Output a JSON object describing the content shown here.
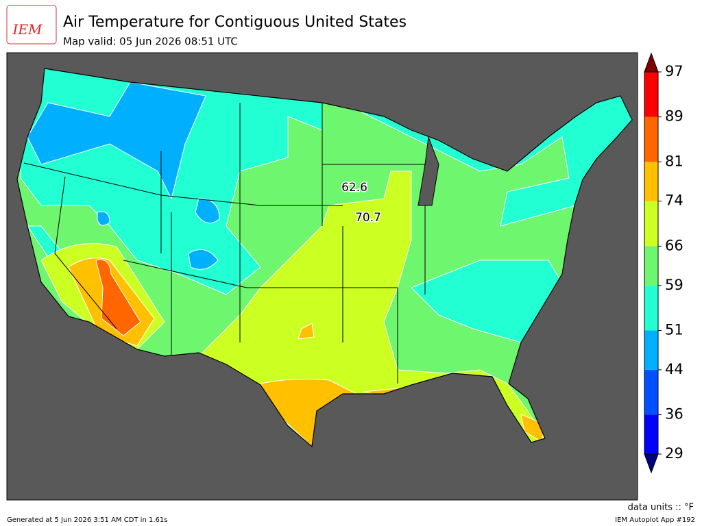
{
  "header": {
    "logo": "IEM",
    "title": "Air Temperature for Contiguous United States",
    "subtitle": "Map valid: 05 Jun 2026 08:51 UTC"
  },
  "annotations": [
    {
      "text": "62.6"
    },
    {
      "text": "70.7"
    }
  ],
  "colorbar": {
    "ticks": [
      29,
      36,
      44,
      51,
      59,
      66,
      74,
      81,
      89,
      97
    ],
    "colors": [
      "#0000ff",
      "#0050ff",
      "#00b0ff",
      "#22ffd2",
      "#6ef66e",
      "#ccff22",
      "#ffc000",
      "#ff6600",
      "#ff0000"
    ],
    "under_color": "#000080",
    "over_color": "#800000"
  },
  "footer": {
    "units": "data units :: °F",
    "generated": "Generated at 5 Jun 2026 3:51 AM CDT in 1.61s",
    "app": "IEM Autoplot App #192"
  }
}
